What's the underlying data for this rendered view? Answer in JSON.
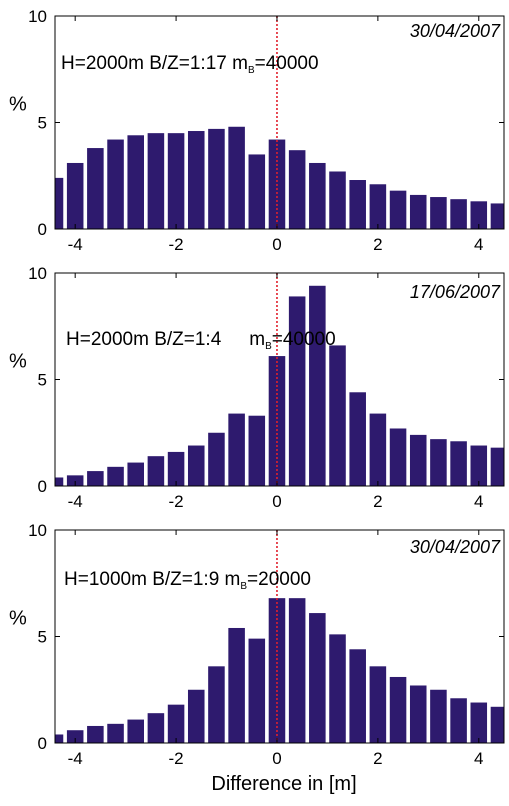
{
  "figure": {
    "xlabel": "Difference in [m]",
    "ylabel": "%",
    "colors": {
      "bar": "#2e1a6e",
      "zero_line": "#e0202c",
      "axis": "#000000"
    }
  },
  "chart_data": [
    {
      "type": "bar",
      "date": "30/04/2007",
      "annotation": "H=2000m B/Z=1:17 m",
      "annotation_subscript": "B",
      "annotation_tail": "=40000",
      "xlim": [
        -4.4,
        4.5
      ],
      "ylim": [
        0,
        10
      ],
      "xticks": [
        "-4",
        "-2",
        "0",
        "2",
        "4"
      ],
      "yticks": [
        "0",
        "5",
        "10"
      ],
      "bin_width": 0.4,
      "x": [
        -4.4,
        -4.0,
        -3.6,
        -3.2,
        -2.8,
        -2.4,
        -2.0,
        -1.6,
        -1.2,
        -0.8,
        -0.4,
        0.0,
        0.4,
        0.8,
        1.2,
        1.6,
        2.0,
        2.4,
        2.8,
        3.2,
        3.6,
        4.0,
        4.4
      ],
      "values": [
        2.4,
        3.1,
        3.8,
        4.2,
        4.4,
        4.5,
        4.5,
        4.6,
        4.7,
        4.8,
        3.5,
        4.2,
        3.7,
        3.1,
        2.7,
        2.3,
        2.1,
        1.8,
        1.6,
        1.5,
        1.4,
        1.3,
        1.2
      ]
    },
    {
      "type": "bar",
      "date": "17/06/2007",
      "annotation": "H=2000m B/Z=1:4",
      "annotation_subscript_label": "m",
      "annotation_subscript": "B",
      "annotation_tail": "=40000",
      "xlim": [
        -4.4,
        4.5
      ],
      "ylim": [
        0,
        10
      ],
      "xticks": [
        "-4",
        "-2",
        "0",
        "2",
        "4"
      ],
      "yticks": [
        "0",
        "5",
        "10"
      ],
      "bin_width": 0.4,
      "x": [
        -4.4,
        -4.0,
        -3.6,
        -3.2,
        -2.8,
        -2.4,
        -2.0,
        -1.6,
        -1.2,
        -0.8,
        -0.4,
        0.0,
        0.4,
        0.8,
        1.2,
        1.6,
        2.0,
        2.4,
        2.8,
        3.2,
        3.6,
        4.0,
        4.4
      ],
      "values": [
        0.4,
        0.5,
        0.7,
        0.9,
        1.1,
        1.4,
        1.6,
        1.9,
        2.5,
        3.4,
        3.3,
        6.1,
        8.9,
        9.4,
        6.6,
        4.4,
        3.4,
        2.7,
        2.4,
        2.2,
        2.1,
        1.9,
        1.8
      ]
    },
    {
      "type": "bar",
      "date": "30/04/2007",
      "annotation": "H=1000m B/Z=1:9 m",
      "annotation_subscript": "B",
      "annotation_tail": "=20000",
      "xlim": [
        -4.4,
        4.5
      ],
      "ylim": [
        0,
        10
      ],
      "xticks": [
        "-4",
        "-2",
        "0",
        "2",
        "4"
      ],
      "yticks": [
        "0",
        "5",
        "10"
      ],
      "bin_width": 0.4,
      "x": [
        -4.4,
        -4.0,
        -3.6,
        -3.2,
        -2.8,
        -2.4,
        -2.0,
        -1.6,
        -1.2,
        -0.8,
        -0.4,
        0.0,
        0.4,
        0.8,
        1.2,
        1.6,
        2.0,
        2.4,
        2.8,
        3.2,
        3.6,
        4.0,
        4.4
      ],
      "values": [
        0.4,
        0.6,
        0.8,
        0.9,
        1.1,
        1.4,
        1.8,
        2.5,
        3.6,
        5.4,
        4.9,
        6.8,
        6.8,
        6.1,
        5.1,
        4.4,
        3.6,
        3.1,
        2.7,
        2.5,
        2.1,
        1.9,
        1.7
      ]
    }
  ]
}
